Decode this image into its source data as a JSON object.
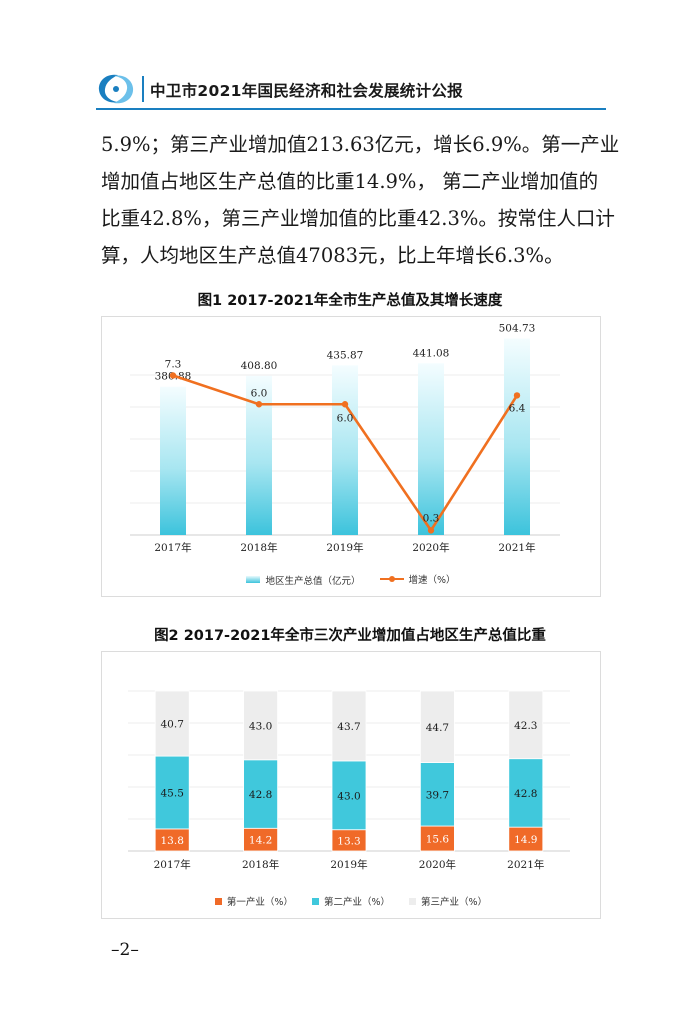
{
  "header": {
    "title": "中卫市2021年国民经济和社会发展统计公报"
  },
  "paragraph": [
    "5.9%；第三产业增加值213.63亿元，增长6.9%。第一产业",
    "增加值占地区生产总值的比重14.9%， 第二产业增加值的",
    "比重42.8%，第三产业增加值的比重42.3%。按常住人口计",
    "算，人均地区生产总值47083元，比上年增长6.3%。"
  ],
  "fig1": {
    "title": "图1  2017-2021年全市生产总值及其增长速度"
  },
  "fig2": {
    "title": "图2  2017-2021年全市三次产业增加值占地区生产总值比重"
  },
  "page_number": "–2–",
  "colors": {
    "accent": "#1a7fc0",
    "bar": "#3cc3dc",
    "line": "#f07020",
    "primary": "#f06a28",
    "secondary": "#40c8dc",
    "tertiary": "#ededed"
  },
  "chart_data": [
    {
      "type": "bar",
      "title": "图1  2017-2021年全市生产总值及其增长速度",
      "categories": [
        "2017年",
        "2018年",
        "2019年",
        "2020年",
        "2021年"
      ],
      "series": [
        {
          "name": "地区生产总值（亿元）",
          "type": "bar",
          "values": [
            380.88,
            408.8,
            435.87,
            441.08,
            504.73
          ],
          "labels": [
            "380.88",
            "408.80",
            "435.87",
            "441.08",
            "504.73"
          ]
        },
        {
          "name": "增速（%）",
          "type": "line",
          "values": [
            7.3,
            6.0,
            6.0,
            0.3,
            6.4
          ],
          "labels": [
            "7.3",
            "6.0",
            "6.0",
            "0.3",
            "6.4"
          ]
        }
      ],
      "legend": "bottom",
      "grid": true
    },
    {
      "type": "bar",
      "stacked": true,
      "title": "图2  2017-2021年全市三次产业增加值占地区生产总值比重",
      "categories": [
        "2017年",
        "2018年",
        "2019年",
        "2020年",
        "2021年"
      ],
      "series": [
        {
          "name": "第一产业（%）",
          "values": [
            13.8,
            14.2,
            13.3,
            15.6,
            14.9
          ],
          "labels": [
            "13.8",
            "14.2",
            "13.3",
            "15.6",
            "14.9"
          ]
        },
        {
          "name": "第二产业（%）",
          "values": [
            45.5,
            42.8,
            43.0,
            39.7,
            42.8
          ],
          "labels": [
            "45.5",
            "42.8",
            "43.0",
            "39.7",
            "42.8"
          ]
        },
        {
          "name": "第三产业（%）",
          "values": [
            40.7,
            43.0,
            43.7,
            44.7,
            42.3
          ],
          "labels": [
            "40.7",
            "43.0",
            "43.7",
            "44.7",
            "42.3"
          ]
        }
      ],
      "legend": "bottom",
      "grid": true
    }
  ]
}
